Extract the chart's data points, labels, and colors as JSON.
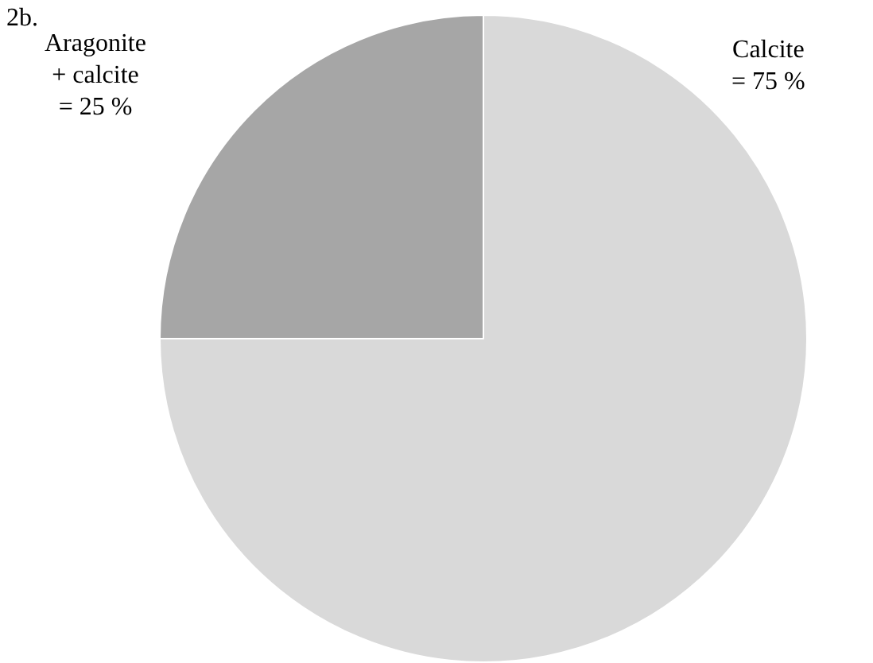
{
  "chart_data": {
    "type": "pie",
    "title": "2b.",
    "categories": [
      "Calcite",
      "Aragonite + calcite"
    ],
    "values": [
      75,
      25
    ],
    "value_labels": [
      "= 75 %",
      "= 25 %"
    ],
    "colors": [
      "#d9d9d9",
      "#a6a6a6"
    ],
    "legend": false
  }
}
